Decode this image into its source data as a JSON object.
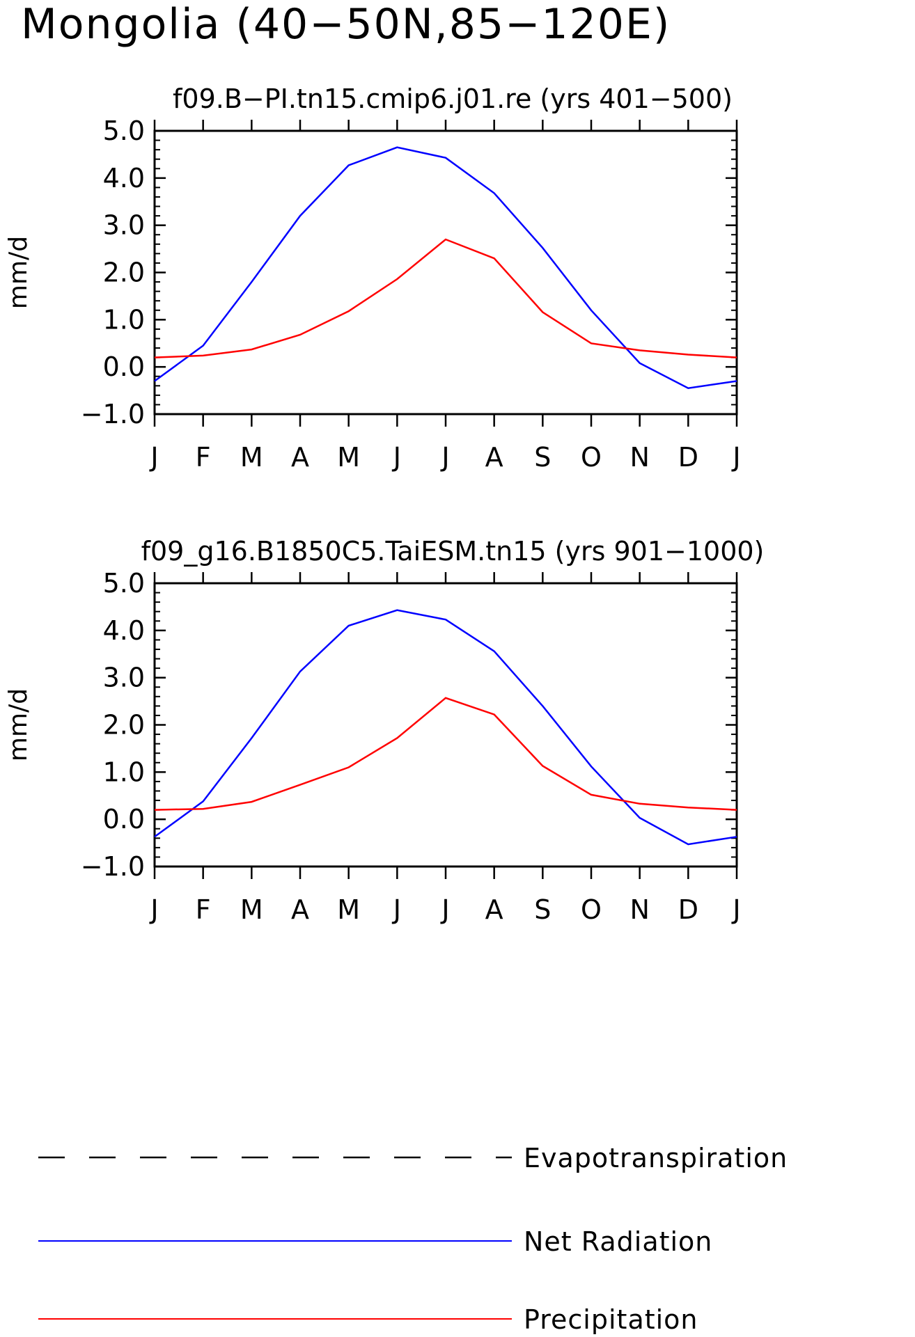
{
  "page_title": "Mongolia (40−50N,85−120E)",
  "chart_data": [
    {
      "type": "line",
      "title": "f09.B−PI.tn15.cmip6.j01.re (yrs 401−500)",
      "xlabel": "",
      "ylabel": "mm/d",
      "categories": [
        "J",
        "F",
        "M",
        "A",
        "M",
        "J",
        "J",
        "A",
        "S",
        "O",
        "N",
        "D",
        "J"
      ],
      "ylim": [
        -1.0,
        5.0
      ],
      "yticks": [
        "−1.0",
        "0.0",
        "1.0",
        "2.0",
        "3.0",
        "4.0",
        "5.0"
      ],
      "series": [
        {
          "name": "Net Radiation",
          "color": "#0000ff",
          "values": [
            -0.3,
            0.45,
            1.8,
            3.2,
            4.27,
            4.65,
            4.43,
            3.68,
            2.52,
            1.2,
            0.08,
            -0.45,
            -0.3
          ]
        },
        {
          "name": "Precipitation",
          "color": "#ff0000",
          "values": [
            0.2,
            0.24,
            0.37,
            0.68,
            1.18,
            1.86,
            2.7,
            2.3,
            1.16,
            0.5,
            0.35,
            0.26,
            0.2
          ]
        }
      ]
    },
    {
      "type": "line",
      "title": "f09_g16.B1850C5.TaiESM.tn15 (yrs 901−1000)",
      "xlabel": "",
      "ylabel": "mm/d",
      "categories": [
        "J",
        "F",
        "M",
        "A",
        "M",
        "J",
        "J",
        "A",
        "S",
        "O",
        "N",
        "D",
        "J"
      ],
      "ylim": [
        -1.0,
        5.0
      ],
      "yticks": [
        "−1.0",
        "0.0",
        "1.0",
        "2.0",
        "3.0",
        "4.0",
        "5.0"
      ],
      "series": [
        {
          "name": "Net Radiation",
          "color": "#0000ff",
          "values": [
            -0.37,
            0.38,
            1.72,
            3.13,
            4.1,
            4.43,
            4.23,
            3.56,
            2.4,
            1.12,
            0.03,
            -0.53,
            -0.37
          ]
        },
        {
          "name": "Precipitation",
          "color": "#ff0000",
          "values": [
            0.2,
            0.22,
            0.37,
            0.73,
            1.1,
            1.72,
            2.57,
            2.22,
            1.13,
            0.52,
            0.33,
            0.25,
            0.2
          ]
        }
      ]
    }
  ],
  "legend": [
    {
      "label": "Evapotranspiration",
      "color": "#000000",
      "style": "dashed"
    },
    {
      "label": "Net Radiation",
      "color": "#0000ff",
      "style": "solid"
    },
    {
      "label": "Precipitation",
      "color": "#ff0000",
      "style": "solid"
    }
  ]
}
